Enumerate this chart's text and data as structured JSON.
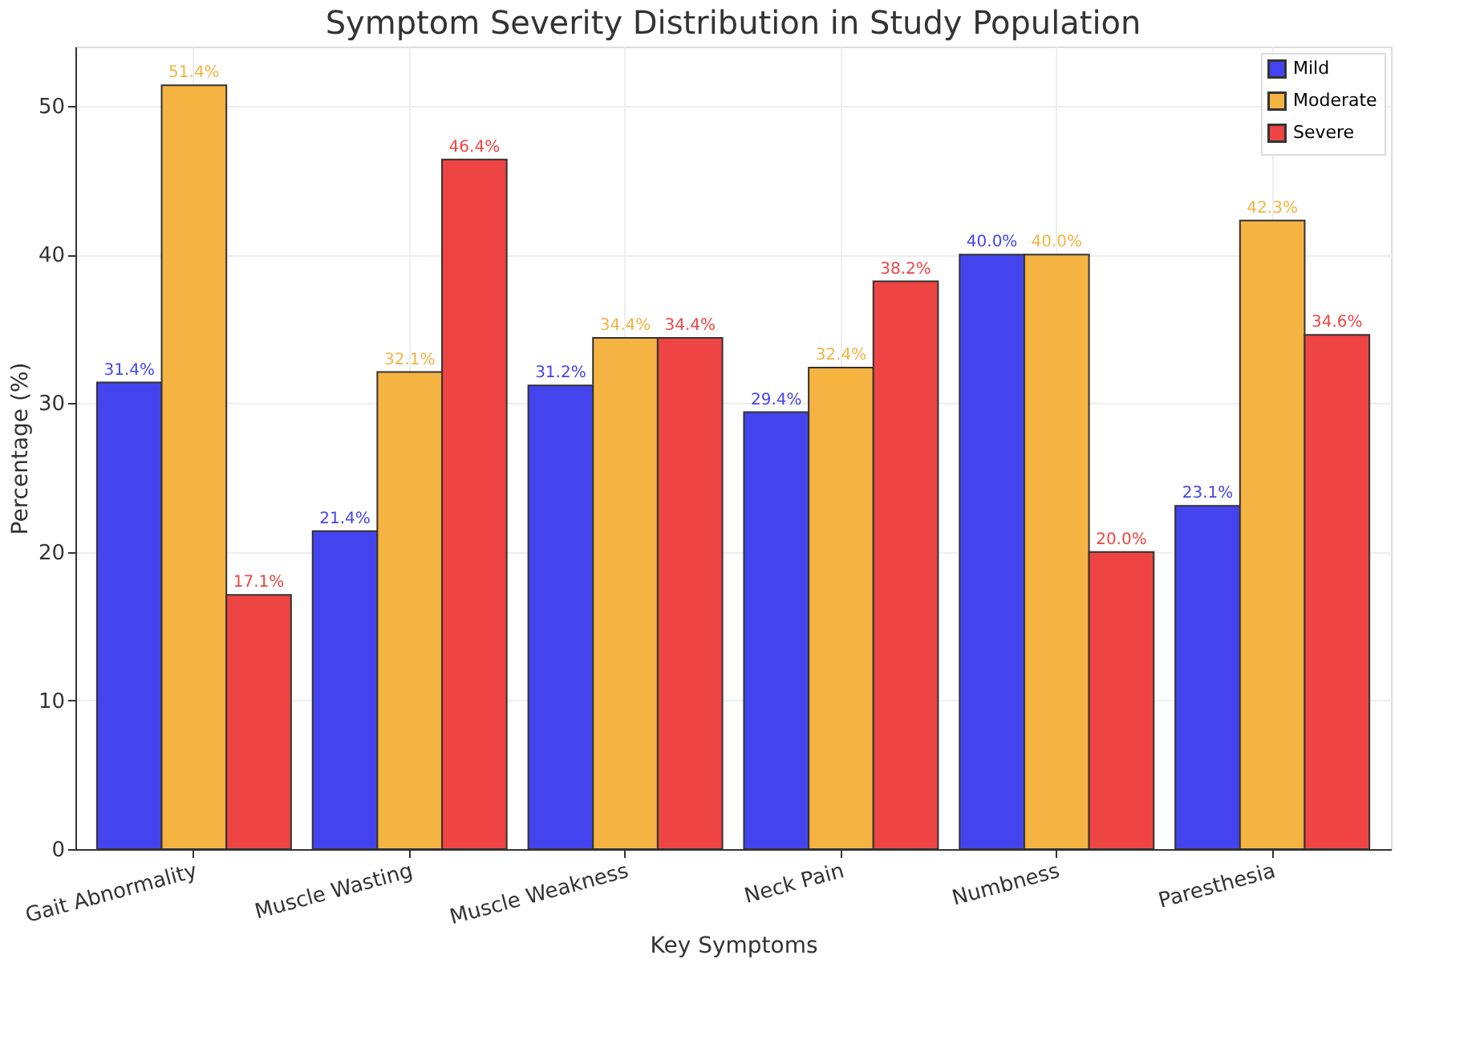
{
  "chart_data": {
    "type": "bar",
    "title": "Symptom Severity Distribution in Study Population",
    "xlabel": "Key Symptoms",
    "ylabel": "Percentage (%)",
    "categories": [
      "Gait Abnormality",
      "Muscle Wasting",
      "Muscle Weakness",
      "Neck Pain",
      "Numbness",
      "Paresthesia"
    ],
    "series": [
      {
        "name": "Mild",
        "color": "#4444ee",
        "values": [
          31.4,
          21.4,
          31.2,
          29.4,
          40.0,
          23.1
        ],
        "value_labels": [
          "31.4%",
          "21.4%",
          "31.2%",
          "29.4%",
          "40.0%",
          "23.1%"
        ]
      },
      {
        "name": "Moderate",
        "color": "#f5b342",
        "values": [
          51.4,
          32.1,
          34.4,
          32.4,
          40.0,
          42.3
        ],
        "value_labels": [
          "51.4%",
          "32.1%",
          "34.4%",
          "32.4%",
          "40.0%",
          "42.3%"
        ]
      },
      {
        "name": "Severe",
        "color": "#ee4444",
        "values": [
          17.1,
          46.4,
          34.4,
          38.2,
          20.0,
          34.6
        ],
        "value_labels": [
          "17.1%",
          "46.4%",
          "34.4%",
          "38.2%",
          "20.0%",
          "34.6%"
        ]
      }
    ],
    "ylim": [
      0,
      54
    ],
    "yticks": [
      0,
      10,
      20,
      30,
      40,
      50
    ],
    "grid": true,
    "legend": "top right"
  }
}
